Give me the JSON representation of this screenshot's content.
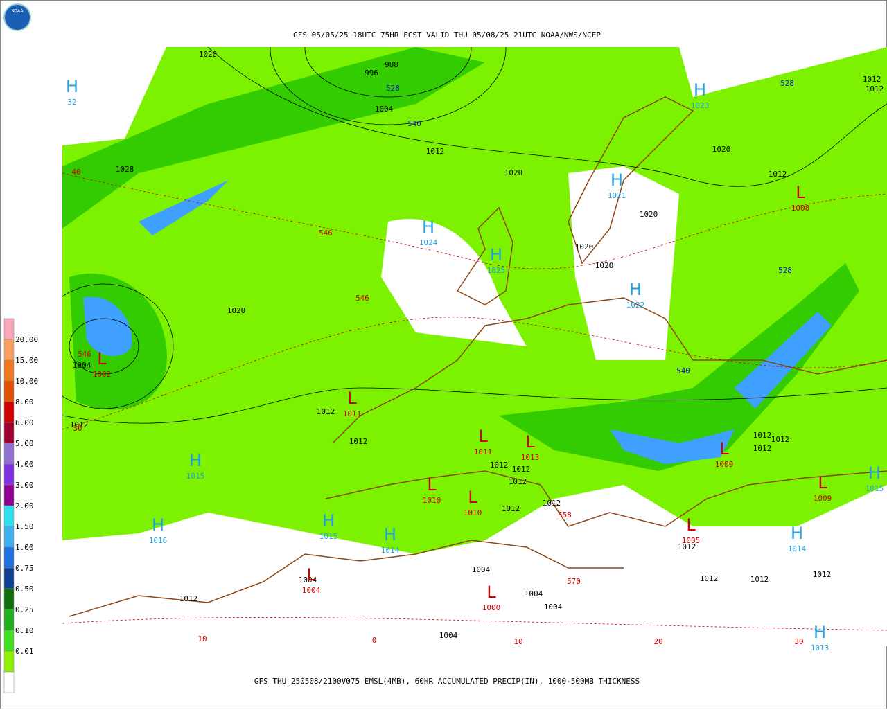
{
  "header": {
    "title": "GFS 05/05/25 18UTC 75HR FCST VALID THU 05/08/25 21UTC NOAA/NWS/NCEP",
    "logo": "NOAA"
  },
  "footer": "GFS THU 250508/2100V075 EMSL(4MB), 60HR ACCUMULATED PRECIP(IN), 1000-500MB THICKNESS",
  "legend": {
    "labels": [
      "20.00",
      "15.00",
      "10.00",
      "8.00",
      "6.00",
      "5.00",
      "4.00",
      "3.00",
      "2.00",
      "1.50",
      "1.00",
      "0.75",
      "0.50",
      "0.25",
      "0.10",
      "0.01"
    ]
  },
  "map": {
    "isobar_labels": [
      "1020",
      "988",
      "996",
      "1004",
      "1012",
      "1028",
      "1020",
      "1020",
      "1020",
      "1020",
      "1020",
      "1020",
      "1012",
      "1012",
      "1012",
      "1012",
      "1004",
      "1012",
      "1012",
      "1012",
      "1012",
      "1012",
      "1012",
      "1012",
      "1012",
      "1012",
      "1012",
      "1012",
      "1004",
      "1012",
      "1004",
      "1004",
      "1004",
      "1004",
      "1012",
      "1012",
      "1012"
    ],
    "thickness_labels_cold": [
      "528",
      "540",
      "528",
      "528",
      "540"
    ],
    "thickness_labels_warm": [
      "546",
      "546",
      "546",
      "558",
      "570",
      "40",
      "30",
      "10",
      "0",
      "10",
      "20",
      "30"
    ],
    "highs": [
      {
        "symbol": "H",
        "value": "32"
      },
      {
        "symbol": "H",
        "value": "1024"
      },
      {
        "symbol": "H",
        "value": "1025"
      },
      {
        "symbol": "H",
        "value": "1021"
      },
      {
        "symbol": "H",
        "value": "1022"
      },
      {
        "symbol": "H",
        "value": "1023"
      },
      {
        "symbol": "H",
        "value": "1015"
      },
      {
        "symbol": "H",
        "value": "1016"
      },
      {
        "symbol": "H",
        "value": "1015"
      },
      {
        "symbol": "H",
        "value": "1014"
      },
      {
        "symbol": "H",
        "value": "1014"
      },
      {
        "symbol": "H",
        "value": "1015"
      },
      {
        "symbol": "H",
        "value": "1013"
      }
    ],
    "lows": [
      {
        "symbol": "L",
        "value": "1002"
      },
      {
        "symbol": "L",
        "value": "1011"
      },
      {
        "symbol": "L",
        "value": "1011"
      },
      {
        "symbol": "L",
        "value": "1013"
      },
      {
        "symbol": "L",
        "value": "1010"
      },
      {
        "symbol": "L",
        "value": "1010"
      },
      {
        "symbol": "L",
        "value": "1004"
      },
      {
        "symbol": "L",
        "value": "1000"
      },
      {
        "symbol": "L",
        "value": "1009"
      },
      {
        "symbol": "L",
        "value": "1009"
      },
      {
        "symbol": "L",
        "value": "1008"
      },
      {
        "symbol": "L",
        "value": "1005"
      }
    ]
  }
}
